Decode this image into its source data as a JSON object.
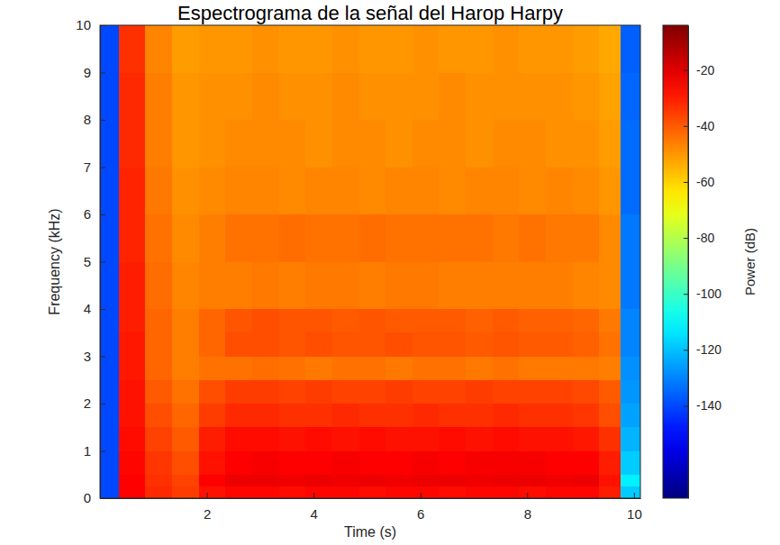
{
  "chart_data": {
    "type": "heatmap",
    "title": "Espectrograma de la señal del Harop Harpy",
    "x_label": "Time (s)",
    "y_label": "Frequency (kHz)",
    "colorbar_label": "Power (dB)",
    "xlim": [
      0,
      10.12
    ],
    "ylim": [
      0,
      10
    ],
    "xticks": [
      2,
      4,
      6,
      8,
      10
    ],
    "yticks": [
      0,
      1,
      2,
      3,
      4,
      5,
      6,
      7,
      8,
      9,
      10
    ],
    "clim": [
      -173,
      -4
    ],
    "cticks": [
      -140,
      -120,
      -100,
      -80,
      -60,
      -40,
      -20
    ],
    "grid": false,
    "x_edges": [
      0,
      0.35,
      0.85,
      1.35,
      1.85,
      2.35,
      2.85,
      3.35,
      3.85,
      4.35,
      4.85,
      5.35,
      5.85,
      6.35,
      6.85,
      7.35,
      7.85,
      8.35,
      8.85,
      9.35,
      9.75,
      10.12
    ],
    "y_edges": [
      0,
      0.25,
      0.5,
      1,
      1.5,
      2,
      2.5,
      3,
      3.5,
      4,
      5,
      6,
      7,
      8,
      9,
      10
    ],
    "z": [
      [
        -140,
        -25,
        -32,
        -35,
        -28,
        -26,
        -26,
        -27,
        -26,
        -26,
        -27,
        -26,
        -26,
        -27,
        -26,
        -26,
        -27,
        -26,
        -26,
        -30,
        -118
      ],
      [
        -140,
        -25,
        -33,
        -36,
        -25,
        -22,
        -22,
        -23,
        -22,
        -23,
        -22,
        -23,
        -22,
        -22,
        -23,
        -22,
        -22,
        -23,
        -22,
        -28,
        -112
      ],
      [
        -140,
        -26,
        -34,
        -38,
        -28,
        -25,
        -24,
        -25,
        -25,
        -24,
        -25,
        -25,
        -24,
        -25,
        -24,
        -24,
        -24,
        -25,
        -25,
        -30,
        -118
      ],
      [
        -140,
        -27,
        -36,
        -40,
        -30,
        -27,
        -27,
        -28,
        -27,
        -28,
        -27,
        -28,
        -28,
        -27,
        -28,
        -27,
        -28,
        -28,
        -29,
        -33,
        -122
      ],
      [
        -140,
        -28,
        -38,
        -42,
        -35,
        -32,
        -32,
        -33,
        -33,
        -32,
        -33,
        -33,
        -32,
        -33,
        -33,
        -32,
        -33,
        -33,
        -34,
        -38,
        -125
      ],
      [
        -140,
        -28,
        -40,
        -44,
        -38,
        -35,
        -35,
        -36,
        -35,
        -36,
        -36,
        -35,
        -36,
        -36,
        -35,
        -36,
        -36,
        -36,
        -37,
        -40,
        -127
      ],
      [
        -140,
        -29,
        -42,
        -46,
        -44,
        -44,
        -43,
        -44,
        -45,
        -44,
        -44,
        -45,
        -44,
        -44,
        -45,
        -44,
        -45,
        -45,
        -45,
        -46,
        -128
      ],
      [
        -140,
        -29,
        -42,
        -46,
        -42,
        -38,
        -38,
        -39,
        -38,
        -39,
        -39,
        -38,
        -39,
        -39,
        -40,
        -39,
        -40,
        -40,
        -41,
        -44,
        -130
      ],
      [
        -140,
        -30,
        -42,
        -46,
        -42,
        -39,
        -38,
        -39,
        -39,
        -40,
        -39,
        -40,
        -40,
        -40,
        -41,
        -40,
        -41,
        -41,
        -42,
        -45,
        -130
      ],
      [
        -140,
        -30,
        -43,
        -47,
        -46,
        -46,
        -45,
        -46,
        -45,
        -45,
        -46,
        -45,
        -45,
        -46,
        -46,
        -46,
        -46,
        -46,
        -47,
        -48,
        -132
      ],
      [
        -140,
        -31,
        -44,
        -48,
        -46,
        -44,
        -44,
        -43,
        -44,
        -44,
        -43,
        -44,
        -44,
        -44,
        -44,
        -45,
        -44,
        -45,
        -45,
        -48,
        -132
      ],
      [
        -140,
        -31,
        -45,
        -49,
        -48,
        -47,
        -47,
        -48,
        -47,
        -47,
        -48,
        -47,
        -47,
        -48,
        -47,
        -47,
        -48,
        -47,
        -48,
        -50,
        -134
      ],
      [
        -140,
        -32,
        -46,
        -50,
        -49,
        -48,
        -48,
        -48,
        -49,
        -48,
        -48,
        -49,
        -48,
        -48,
        -49,
        -48,
        -48,
        -49,
        -49,
        -51,
        -134
      ],
      [
        -140,
        -32,
        -46,
        -50,
        -49,
        -49,
        -48,
        -49,
        -49,
        -48,
        -49,
        -49,
        -49,
        -48,
        -49,
        -49,
        -49,
        -49,
        -50,
        -52,
        -135
      ],
      [
        -140,
        -33,
        -47,
        -51,
        -50,
        -50,
        -49,
        -50,
        -50,
        -49,
        -50,
        -50,
        -49,
        -50,
        -50,
        -49,
        -50,
        -50,
        -51,
        -53,
        -136
      ]
    ]
  }
}
